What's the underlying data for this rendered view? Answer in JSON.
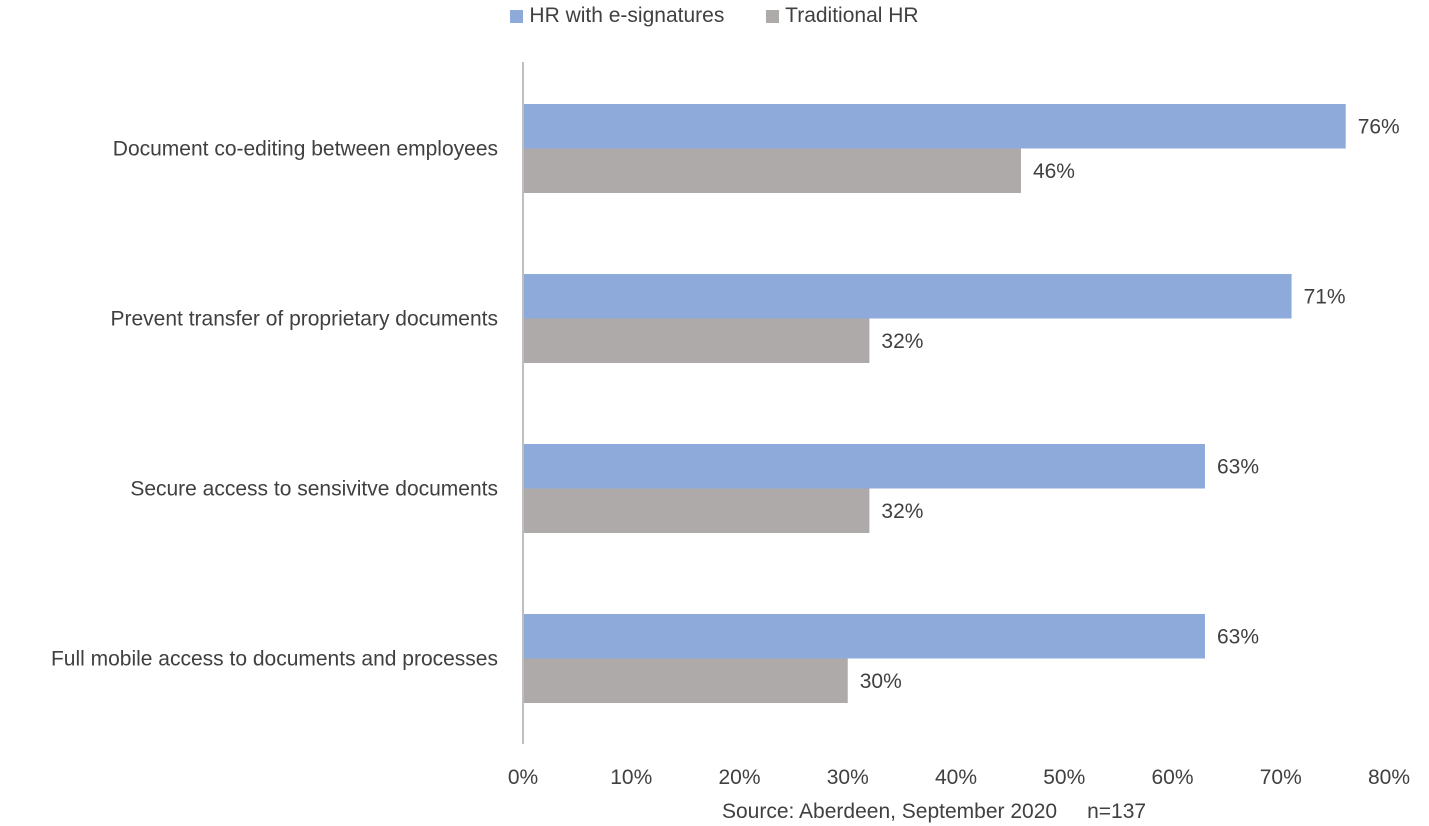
{
  "chart_data": {
    "type": "bar",
    "orientation": "horizontal",
    "categories": [
      "Document co-editing between employees",
      "Prevent transfer of proprietary documents",
      "Secure access to sensivitve documents",
      "Full mobile access to documents and processes"
    ],
    "series": [
      {
        "name": "HR with e-signatures",
        "values": [
          76,
          71,
          63,
          63
        ],
        "color": "#8eaadb"
      },
      {
        "name": "Traditional HR",
        "values": [
          46,
          32,
          32,
          30
        ],
        "color": "#aeaaaa"
      }
    ],
    "value_format": "{v}%",
    "xlim": [
      0,
      80
    ],
    "xticks": [
      "0%",
      "10%",
      "20%",
      "30%",
      "40%",
      "50%",
      "60%",
      "70%",
      "80%"
    ],
    "grid": false,
    "legend_position": "top"
  },
  "source_note": "Source: Aberdeen, September 2020",
  "sample_size": "n=137"
}
